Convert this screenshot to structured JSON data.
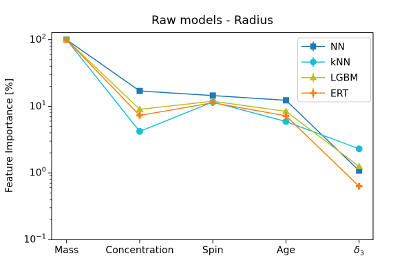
{
  "chart_data": {
    "type": "line",
    "title": "Raw models - Radius",
    "xlabel": "",
    "ylabel": "Feature Importance [%]",
    "categories": [
      "Mass",
      "Concentration",
      "Spin",
      "Age",
      "δ₃"
    ],
    "series": [
      {
        "name": "NN",
        "color": "#2077b4",
        "marker": "square",
        "values": [
          100,
          17.0,
          14.5,
          12.3,
          1.08
        ]
      },
      {
        "name": "kNN",
        "color": "#1cbdd4",
        "marker": "circle",
        "values": [
          100,
          4.2,
          11.6,
          5.9,
          2.3
        ]
      },
      {
        "name": "LGBM",
        "color": "#bcbd22",
        "marker": "triangle",
        "values": [
          100,
          9.0,
          11.9,
          8.4,
          1.25
        ]
      },
      {
        "name": "ERT",
        "color": "#ff7f0e",
        "marker": "plus",
        "values": [
          100,
          7.3,
          11.3,
          7.2,
          0.63
        ]
      }
    ],
    "yscale": "log",
    "ylim": [
      0.1,
      127
    ],
    "y_ticks": [
      {
        "base": "10",
        "exp": "2",
        "value": 100
      },
      {
        "base": "10",
        "exp": "1",
        "value": 10
      },
      {
        "base": "10",
        "exp": "0",
        "value": 1
      },
      {
        "base": "10",
        "exp": "−1",
        "value": 0.1
      }
    ],
    "legend_position": "upper right",
    "grid": false,
    "axis_color": "#000000",
    "legend_border_color": "#cccccc"
  }
}
